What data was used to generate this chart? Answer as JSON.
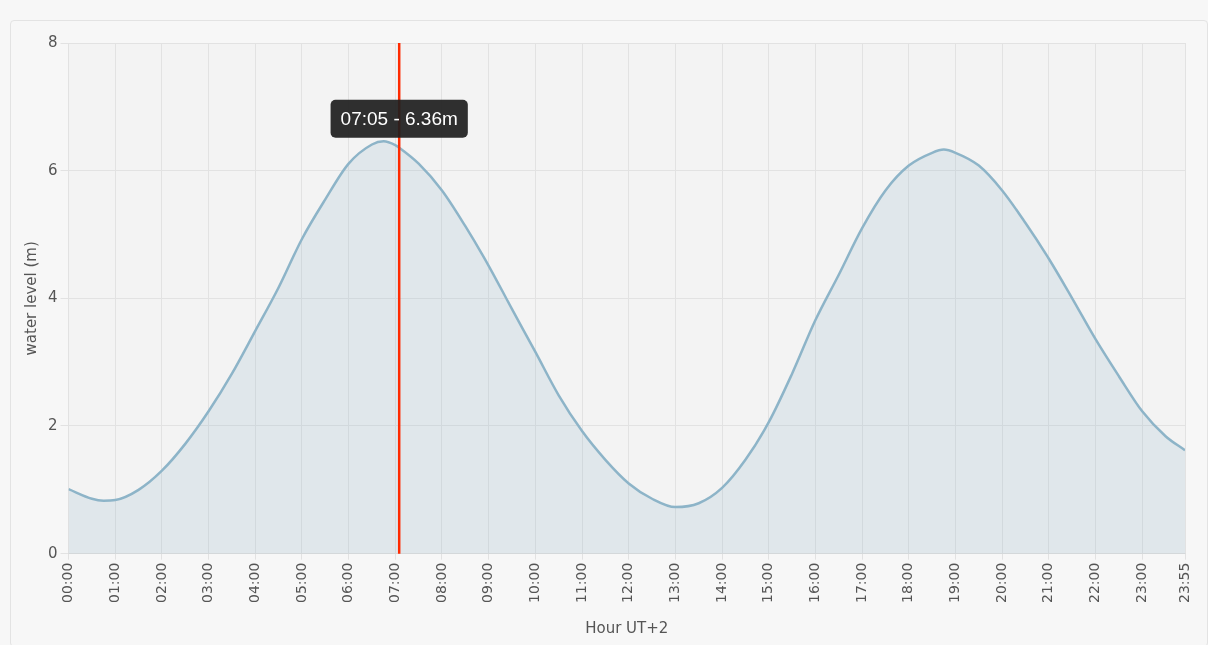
{
  "chart_data": {
    "type": "area",
    "xlabel": "Hour UT+2",
    "ylabel": "water level (m)",
    "x": [
      0,
      0.5,
      0.75,
      1,
      1.5,
      2,
      2.5,
      3,
      3.5,
      4,
      4.5,
      5,
      5.5,
      6,
      6.5,
      6.75,
      7,
      7.0833,
      7.5,
      8,
      8.5,
      9,
      9.5,
      10,
      10.5,
      11,
      11.5,
      12,
      12.5,
      13,
      13.5,
      14,
      14.5,
      15,
      15.5,
      16,
      16.5,
      17,
      17.5,
      18,
      18.5,
      18.75,
      19,
      19.5,
      20,
      20.5,
      21,
      21.5,
      22,
      22.5,
      23,
      23.5,
      23.9167
    ],
    "series": [
      {
        "color": "#8db4c8",
        "values": [
          1.01,
          0.86,
          0.83,
          0.84,
          1.0,
          1.3,
          1.72,
          2.23,
          2.82,
          3.49,
          4.17,
          4.93,
          5.55,
          6.11,
          6.41,
          6.46,
          6.4,
          6.36,
          6.11,
          5.69,
          5.13,
          4.51,
          3.83,
          3.16,
          2.48,
          1.92,
          1.47,
          1.1,
          0.86,
          0.73,
          0.79,
          1.03,
          1.47,
          2.06,
          2.82,
          3.66,
          4.37,
          5.1,
          5.69,
          6.08,
          6.28,
          6.33,
          6.28,
          6.08,
          5.69,
          5.18,
          4.62,
          4.0,
          3.36,
          2.78,
          2.23,
          1.84,
          1.62
        ]
      }
    ],
    "xlim": [
      0,
      23.9167
    ],
    "xticks": [
      {
        "value": 0,
        "label": "00:00"
      },
      {
        "value": 1,
        "label": "01:00"
      },
      {
        "value": 2,
        "label": "02:00"
      },
      {
        "value": 3,
        "label": "03:00"
      },
      {
        "value": 4,
        "label": "04:00"
      },
      {
        "value": 5,
        "label": "05:00"
      },
      {
        "value": 6,
        "label": "06:00"
      },
      {
        "value": 7,
        "label": "07:00"
      },
      {
        "value": 8,
        "label": "08:00"
      },
      {
        "value": 9,
        "label": "09:00"
      },
      {
        "value": 10,
        "label": "10:00"
      },
      {
        "value": 11,
        "label": "11:00"
      },
      {
        "value": 12,
        "label": "12:00"
      },
      {
        "value": 13,
        "label": "13:00"
      },
      {
        "value": 14,
        "label": "14:00"
      },
      {
        "value": 15,
        "label": "15:00"
      },
      {
        "value": 16,
        "label": "16:00"
      },
      {
        "value": 17,
        "label": "17:00"
      },
      {
        "value": 18,
        "label": "18:00"
      },
      {
        "value": 19,
        "label": "19:00"
      },
      {
        "value": 20,
        "label": "20:00"
      },
      {
        "value": 21,
        "label": "21:00"
      },
      {
        "value": 22,
        "label": "22:00"
      },
      {
        "value": 23,
        "label": "23:00"
      },
      {
        "value": 23.9167,
        "label": "23:55"
      }
    ],
    "ylim": [
      0,
      8
    ],
    "yticks": [
      0,
      2,
      4,
      6,
      8
    ],
    "ref_lines": [
      {
        "axis": "x",
        "value": 7.0833,
        "color": "#ff2a00"
      }
    ],
    "annotations": [
      {
        "text": "07:05 - 6.36m",
        "x": 7.0833,
        "y": 6.36
      }
    ],
    "grid": true,
    "marker": "none",
    "line_style": "solid",
    "legend": false
  }
}
